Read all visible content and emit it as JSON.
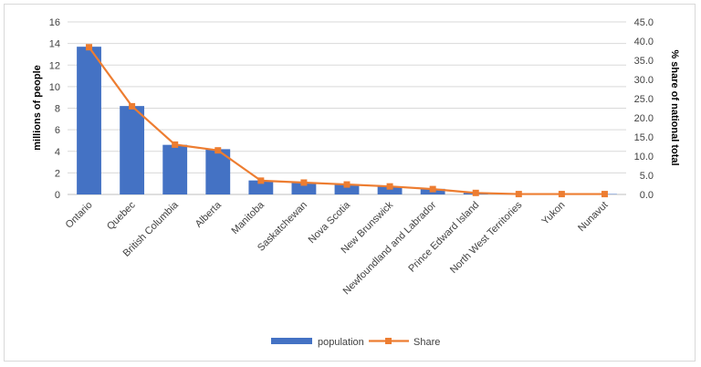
{
  "chart_data": {
    "type": "bar",
    "categories": [
      "Ontario",
      "Quebec",
      "British Columbia",
      "Alberta",
      "Manitoba",
      "Saskatchewan",
      "Nova Scotia",
      "New Brunswick",
      "Newfoundland and Labrador",
      "Prince Edward Island",
      "North West Territories",
      "Yukon",
      "Nunavut"
    ],
    "series": [
      {
        "name": "population",
        "type": "bar",
        "axis": "left",
        "color": "#4472c4",
        "values": [
          13.7,
          8.2,
          4.6,
          4.2,
          1.3,
          1.1,
          0.9,
          0.75,
          0.52,
          0.15,
          0.04,
          0.04,
          0.04
        ]
      },
      {
        "name": "Share",
        "type": "line",
        "axis": "right",
        "color": "#ed7d31",
        "values": [
          38.4,
          23.0,
          13.0,
          11.5,
          3.6,
          3.1,
          2.6,
          2.1,
          1.4,
          0.4,
          0.1,
          0.1,
          0.1
        ]
      }
    ],
    "y_left": {
      "label": "millions of people",
      "ticks": [
        "0",
        "2",
        "4",
        "6",
        "8",
        "10",
        "12",
        "14",
        "16"
      ],
      "min": 0,
      "max": 16
    },
    "y_right": {
      "label": "% share of national total",
      "ticks": [
        "0.0",
        "5.0",
        "10.0",
        "15.0",
        "20.0",
        "25.0",
        "30.0",
        "35.0",
        "40.0",
        "45.0"
      ],
      "min": 0,
      "max": 45
    },
    "grid": true,
    "legend": {
      "placement": "bottom",
      "items": [
        "population",
        "Share"
      ]
    }
  }
}
